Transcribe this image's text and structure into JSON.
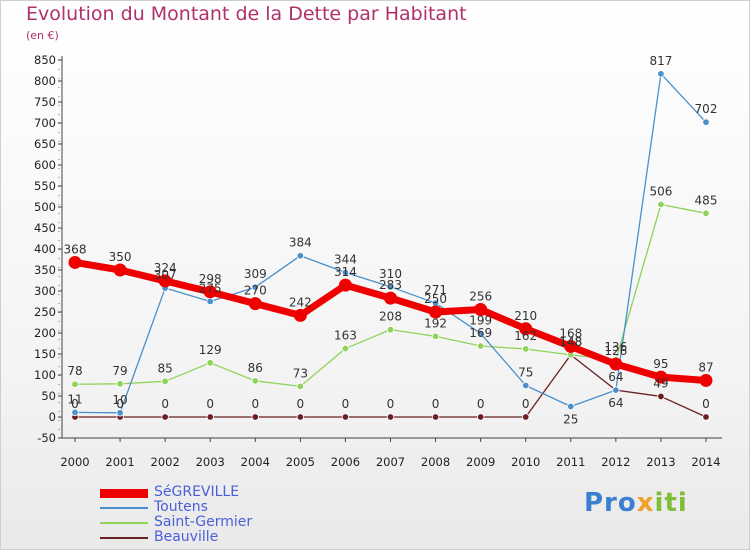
{
  "header": {
    "title": "Evolution du Montant de la Dette par Habitant",
    "subtitle": "(en €)"
  },
  "brand": {
    "p1": "Pro",
    "p2": "x",
    "p3": "iti"
  },
  "chart_data": {
    "type": "line",
    "title": "Evolution du Montant de la Dette par Habitant",
    "subtitle": "(en €)",
    "x": [
      2000,
      2001,
      2002,
      2003,
      2004,
      2005,
      2006,
      2007,
      2008,
      2009,
      2010,
      2011,
      2012,
      2013,
      2014
    ],
    "ylim": [
      -50,
      850
    ],
    "yticks": [
      -50,
      0,
      50,
      100,
      150,
      200,
      250,
      300,
      350,
      400,
      450,
      500,
      550,
      600,
      650,
      700,
      750,
      800,
      850
    ],
    "grid": false,
    "legend_position": "bottom-left",
    "series": [
      {
        "name": "Beauville",
        "color": "#6b2020",
        "values": [
          0,
          0,
          0,
          0,
          0,
          0,
          0,
          0,
          0,
          0,
          0,
          148,
          64,
          49,
          0
        ]
      },
      {
        "name": "Saint-Germier",
        "color": "#8fd35a",
        "values": [
          78,
          79,
          85,
          129,
          86,
          73,
          163,
          208,
          192,
          169,
          162,
          148,
          136,
          506,
          485
        ]
      },
      {
        "name": "Toutens",
        "color": "#4a90cc",
        "values": [
          11,
          10,
          307,
          275,
          309,
          384,
          344,
          310,
          271,
          199,
          75,
          25,
          64,
          817,
          702
        ]
      },
      {
        "name": "SéGREVILLE",
        "color": "#ee0000",
        "values": [
          368,
          350,
          324,
          298,
          270,
          242,
          314,
          283,
          250,
          256,
          210,
          168,
          126,
          95,
          87
        ]
      }
    ],
    "label_top": {
      "SéGREVILLE": [
        1,
        1,
        1,
        1,
        1,
        1,
        1,
        1,
        1,
        1,
        1,
        1,
        1,
        1,
        1
      ],
      "Toutens": [
        1,
        1,
        1,
        1,
        1,
        1,
        1,
        1,
        1,
        1,
        1,
        0,
        1,
        1,
        1
      ],
      "Saint-Germier": [
        1,
        1,
        1,
        1,
        1,
        1,
        1,
        1,
        1,
        1,
        1,
        1,
        1,
        1,
        1
      ],
      "Beauville": [
        1,
        1,
        1,
        1,
        1,
        1,
        1,
        1,
        1,
        1,
        1,
        1,
        0,
        1,
        1
      ]
    },
    "legend": [
      "SéGREVILLE",
      "Toutens",
      "Saint-Germier",
      "Beauville"
    ]
  }
}
